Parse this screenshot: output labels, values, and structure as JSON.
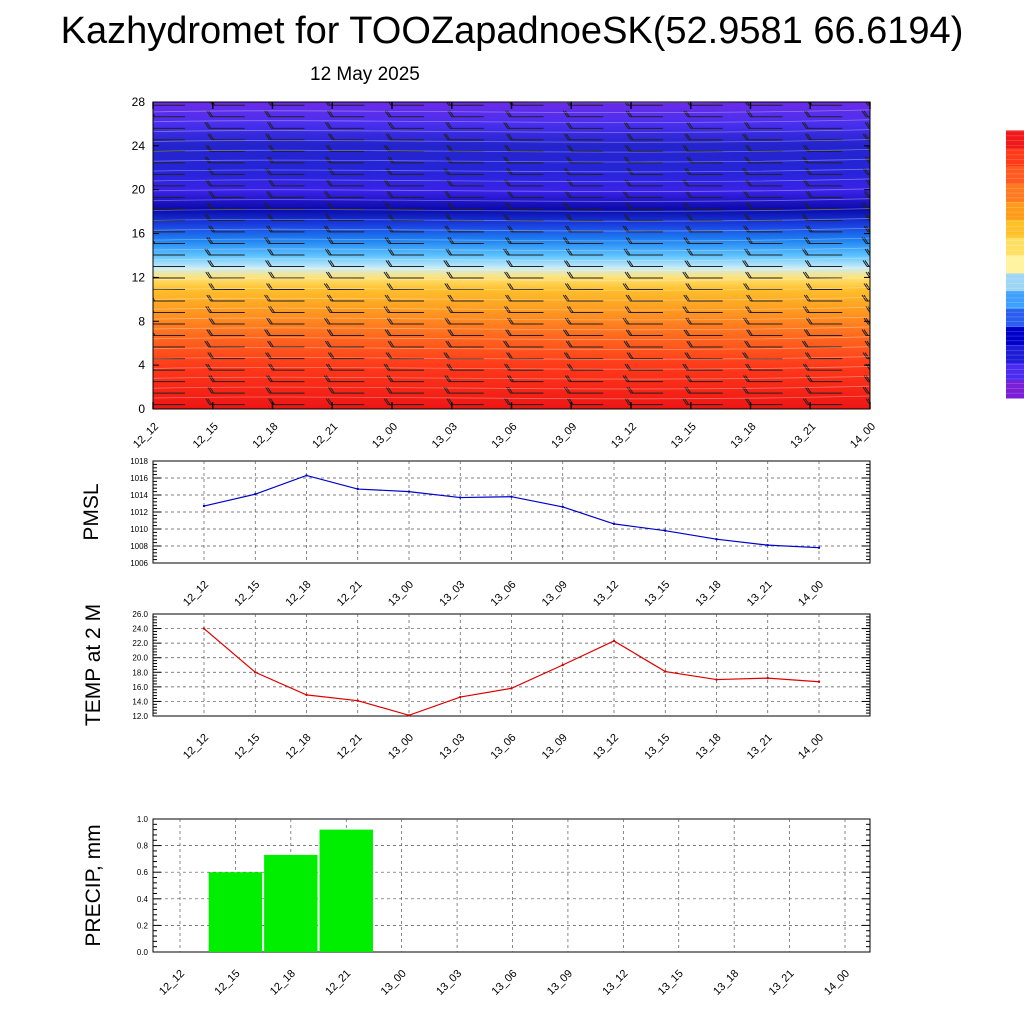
{
  "header": {
    "title": "Kazhydromet for TOOZapadnoeSK(52.9581 66.6194)",
    "date": "12 May 2025"
  },
  "colors": {
    "pmsl_line": "#0000cc",
    "temp_line": "#dd0000",
    "precip_bar": "#00ee00",
    "colorbar": [
      "#7a1fd6",
      "#4b2bf0",
      "#1d1dd8",
      "#0000c8",
      "#2b5ef0",
      "#3fa0ff",
      "#9fd6f5",
      "#fff3a0",
      "#ffe066",
      "#ffc02a",
      "#ff9a1a",
      "#ff7a20",
      "#ff5a20",
      "#ff3b1a",
      "#f01a1a",
      "#ffffff"
    ]
  },
  "chart_data": [
    {
      "type": "heatmap",
      "title": "",
      "xlabel": "",
      "ylabel": "",
      "x": [
        "12_12",
        "12_15",
        "12_18",
        "12_21",
        "13_00",
        "13_03",
        "13_06",
        "13_09",
        "13_12",
        "13_15",
        "13_18",
        "13_21",
        "14_00"
      ],
      "yticks": [
        0,
        4,
        8,
        12,
        16,
        20,
        24,
        28
      ],
      "ylim": [
        0,
        28
      ],
      "description": "filled contours with wind barbs"
    },
    {
      "type": "line",
      "ylabel": "PMSL",
      "x": [
        "12_12",
        "12_15",
        "12_18",
        "12_21",
        "13_00",
        "13_03",
        "13_06",
        "13_09",
        "13_12",
        "13_15",
        "13_18",
        "13_21",
        "14_00"
      ],
      "values": [
        1012.7,
        1014.1,
        1016.3,
        1014.7,
        1014.4,
        1013.7,
        1013.8,
        1012.6,
        1010.6,
        1009.8,
        1008.8,
        1008.1,
        1007.8
      ],
      "ylim": [
        1006,
        1018
      ],
      "yticks": [
        "1006",
        "1008",
        "1010",
        "1012",
        "1014",
        "1016",
        "1018"
      ],
      "grid": true
    },
    {
      "type": "line",
      "ylabel": "TEMP at 2 M",
      "x": [
        "12_12",
        "12_15",
        "12_18",
        "12_21",
        "13_00",
        "13_03",
        "13_06",
        "13_09",
        "13_12",
        "13_15",
        "13_18",
        "13_21",
        "14_00"
      ],
      "values": [
        24.0,
        18.0,
        14.9,
        14.1,
        12.1,
        14.6,
        15.8,
        19.0,
        22.3,
        18.1,
        17.0,
        17.2,
        16.7
      ],
      "ylim": [
        12,
        26
      ],
      "yticks": [
        "12.0",
        "14.0",
        "16.0",
        "18.0",
        "20.0",
        "22.0",
        "24.0",
        "26.0"
      ],
      "grid": true
    },
    {
      "type": "bar",
      "ylabel": "PRECIP, mm",
      "x": [
        "12_12",
        "12_15",
        "12_18",
        "12_21",
        "13_00",
        "13_03",
        "13_06",
        "13_09",
        "13_12",
        "13_15",
        "13_18",
        "13_21",
        "14_00"
      ],
      "values": [
        0,
        0.6,
        0.73,
        0.92,
        0,
        0,
        0,
        0,
        0,
        0,
        0,
        0,
        0
      ],
      "ylim": [
        0,
        1
      ],
      "yticks": [
        "0.0",
        "0.2",
        "0.4",
        "0.6",
        "0.8",
        "1.0"
      ],
      "grid": true
    }
  ]
}
